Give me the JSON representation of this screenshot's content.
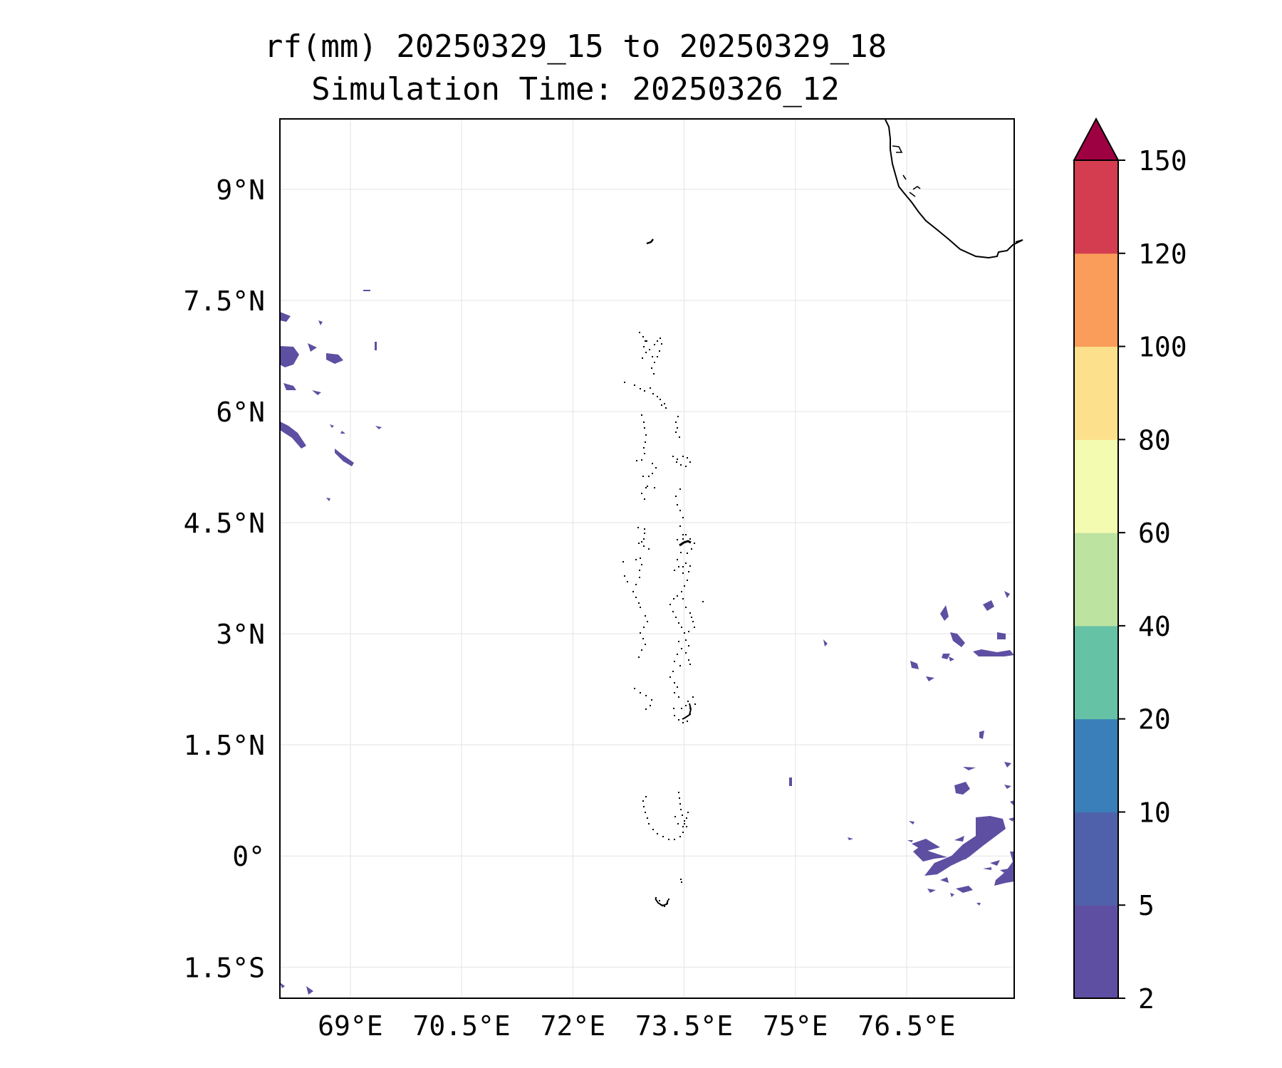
{
  "title": {
    "line1": "rf(mm) 20250329_15 to 20250329_18",
    "line2": "Simulation Time: 20250326_12"
  },
  "map": {
    "lat_ticks": [
      "9°N",
      "7.5°N",
      "6°N",
      "4.5°N",
      "3°N",
      "1.5°N",
      "0°",
      "1.5°S"
    ],
    "lon_ticks": [
      "69°E",
      "70.5°E",
      "72°E",
      "73.5°E",
      "75°E",
      "76.5°E"
    ],
    "lat_values": [
      9,
      7.5,
      6,
      4.5,
      3,
      1.5,
      0,
      -1.5
    ],
    "lon_values": [
      69,
      70.5,
      72,
      73.5,
      75,
      76.5
    ],
    "lon_range": [
      68.05,
      77.95
    ],
    "lat_range": [
      -1.92,
      9.95
    ]
  },
  "colorbar": {
    "levels": [
      "2",
      "5",
      "10",
      "20",
      "40",
      "60",
      "80",
      "100",
      "120",
      "150"
    ],
    "colors": [
      "#5e4fa2",
      "#4f61aa",
      "#3a7fb9",
      "#66c2a5",
      "#bde3a0",
      "#f3fbb0",
      "#fde08b",
      "#fa9c5a",
      "#d43d4f",
      "#9e0142"
    ],
    "extend": "max"
  },
  "rain_color": "#5e4fa2",
  "coast_color": "#000000"
}
